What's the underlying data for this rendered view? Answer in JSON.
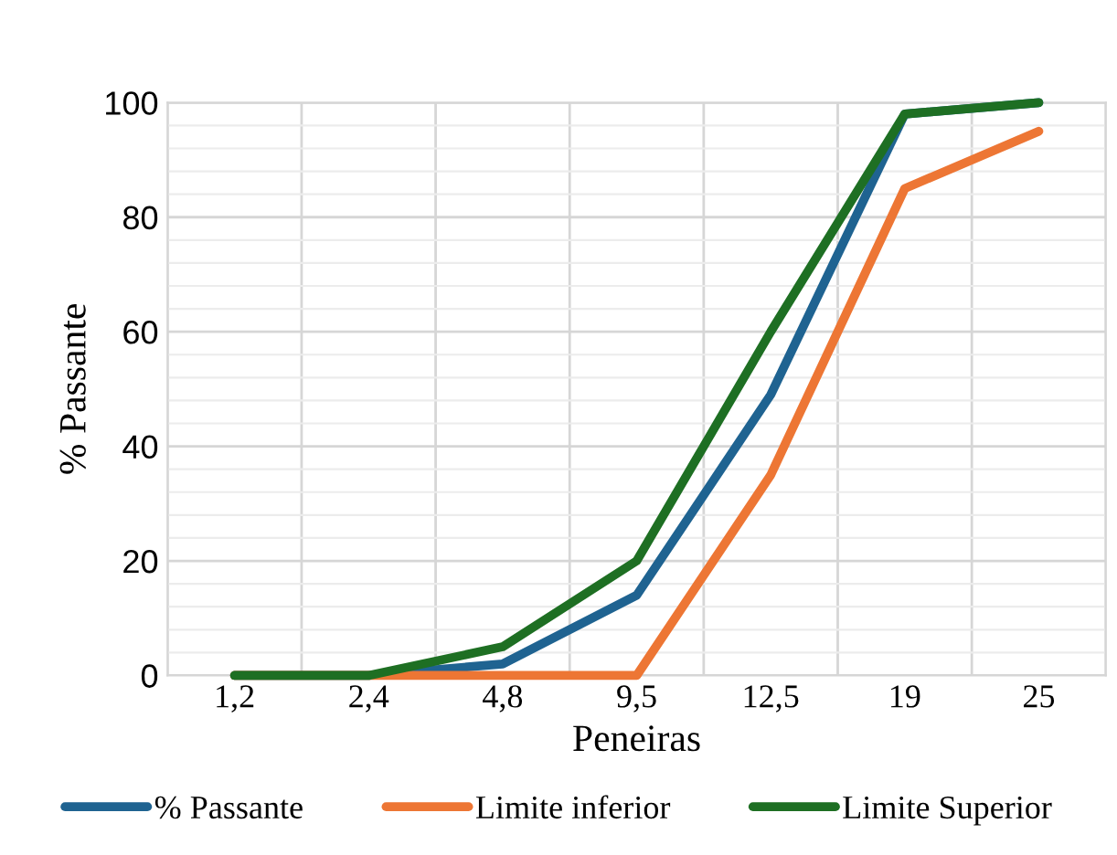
{
  "chart_data": {
    "type": "line",
    "xlabel": "Peneiras",
    "ylabel": "% Passante",
    "categories": [
      "1,2",
      "2,4",
      "4,8",
      "9,5",
      "12,5",
      "19",
      "25"
    ],
    "series": [
      {
        "name": "% Passante",
        "color": "#1f6391",
        "values": [
          0,
          0,
          2,
          14,
          49,
          98,
          100
        ]
      },
      {
        "name": "Limite inferior",
        "color": "#ed7634",
        "values": [
          0,
          0,
          0,
          0,
          35,
          85,
          95
        ]
      },
      {
        "name": "Limite Superior",
        "color": "#1e6f23",
        "values": [
          0,
          0,
          5,
          20,
          60,
          98,
          100
        ]
      }
    ],
    "ylim": [
      0,
      100
    ],
    "yticks": [
      0,
      20,
      40,
      60,
      80,
      100
    ],
    "grid": true,
    "legend": "bottom",
    "marker": "none",
    "line_style": "solid"
  }
}
